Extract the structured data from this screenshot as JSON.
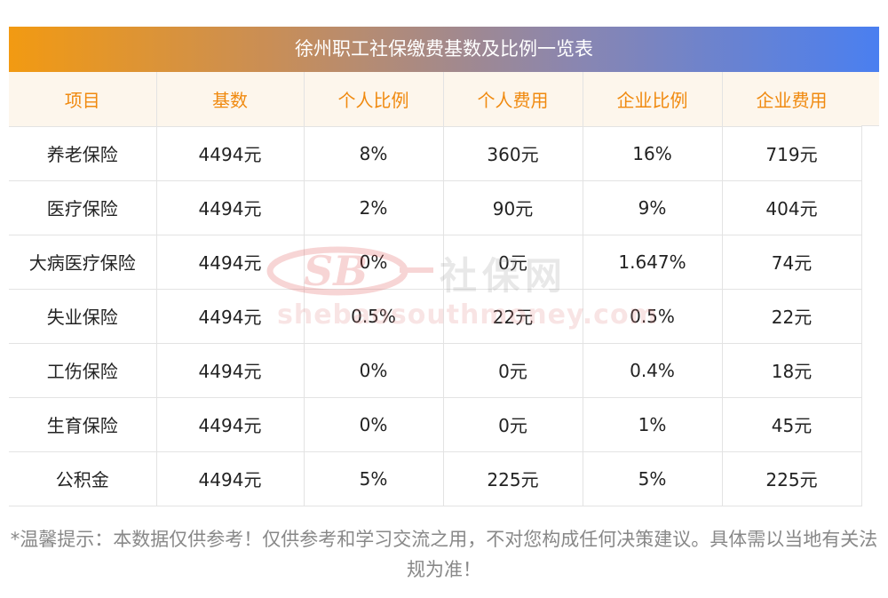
{
  "title": "徐州职工社保缴费基数及比例一览表",
  "columns": [
    "项目",
    "基数",
    "个人比例",
    "个人费用",
    "企业比例",
    "企业费用"
  ],
  "rows": [
    [
      "养老保险",
      "4494元",
      "8%",
      "360元",
      "16%",
      "719元"
    ],
    [
      "医疗保险",
      "4494元",
      "2%",
      "90元",
      "9%",
      "404元"
    ],
    [
      "大病医疗保险",
      "4494元",
      "0%",
      "0元",
      "1.647%",
      "74元"
    ],
    [
      "失业保险",
      "4494元",
      "0.5%",
      "22元",
      "0.5%",
      "22元"
    ],
    [
      "工伤保险",
      "4494元",
      "0%",
      "0元",
      "0.4%",
      "18元"
    ],
    [
      "生育保险",
      "4494元",
      "0%",
      "0元",
      "1%",
      "45元"
    ],
    [
      "公积金",
      "4494元",
      "5%",
      "225元",
      "5%",
      "225元"
    ]
  ],
  "watermark": {
    "logo_text": "SB",
    "brand": "社保网",
    "url": "shebaosouthmoney.com"
  },
  "footnote": "*温馨提示：本数据仅供参考！仅供参考和学习交流之用，不对您构成任何决策建议。具体需以当地有关法规为准！",
  "colors": {
    "header_text": "#f08a10",
    "header_bg": "#fdf6ec",
    "gradient_start": "#f29a12",
    "gradient_end": "#4a7ff0"
  }
}
